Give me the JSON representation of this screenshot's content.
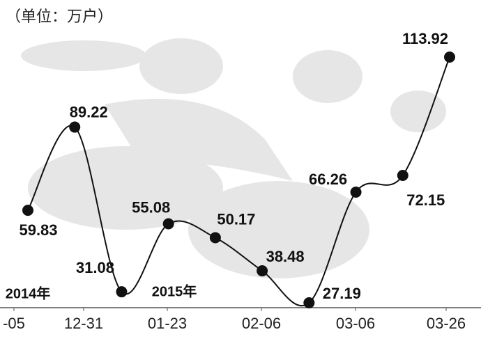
{
  "chart_data": {
    "type": "line",
    "subtitle": "（单位：万户）",
    "annotations": [
      "2014年",
      "2015年"
    ],
    "categories": [
      "-05",
      "12-31",
      null,
      "01-23",
      null,
      "02-06",
      null,
      "03-06",
      null,
      "03-26"
    ],
    "values": [
      59.83,
      89.22,
      31.08,
      55.08,
      50.17,
      38.48,
      27.19,
      66.26,
      72.15,
      113.92
    ],
    "color": "#111111"
  }
}
